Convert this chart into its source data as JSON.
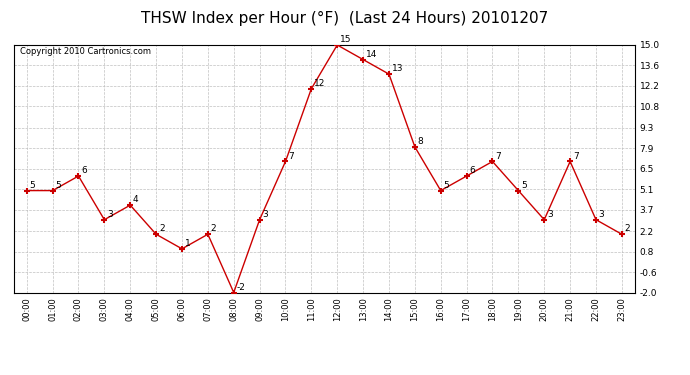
{
  "title": "THSW Index per Hour (°F)  (Last 24 Hours) 20101207",
  "copyright": "Copyright 2010 Cartronics.com",
  "hours": [
    0,
    1,
    2,
    3,
    4,
    5,
    6,
    7,
    8,
    9,
    10,
    11,
    12,
    13,
    14,
    15,
    16,
    17,
    18,
    19,
    20,
    21,
    22,
    23
  ],
  "values": [
    5,
    5,
    6,
    3,
    4,
    2,
    1,
    2,
    -2,
    3,
    7,
    12,
    15,
    14,
    13,
    8,
    5,
    6,
    7,
    5,
    3,
    7,
    3,
    2
  ],
  "line_color": "#cc0000",
  "marker_color": "#cc0000",
  "background_color": "#ffffff",
  "grid_color": "#c0c0c0",
  "ylim": [
    -2.0,
    15.0
  ],
  "yticks": [
    15.0,
    13.6,
    12.2,
    10.8,
    9.3,
    7.9,
    6.5,
    5.1,
    3.7,
    2.2,
    0.8,
    -0.6,
    -2.0
  ],
  "title_fontsize": 11,
  "annotation_fontsize": 6.5,
  "xlabel_fontsize": 6,
  "ylabel_fontsize": 6.5,
  "copyright_fontsize": 6
}
